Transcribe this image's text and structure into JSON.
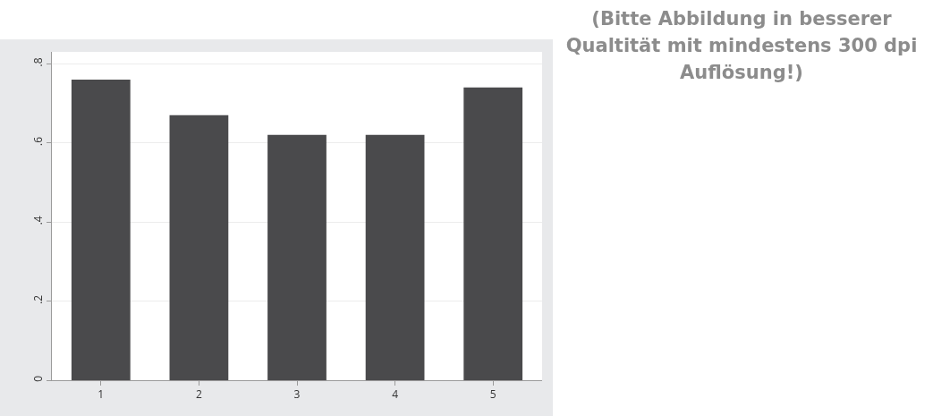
{
  "chart_data": {
    "type": "bar",
    "categories": [
      "1",
      "2",
      "3",
      "4",
      "5"
    ],
    "values": [
      0.76,
      0.67,
      0.62,
      0.62,
      0.74
    ],
    "color": "#4a4a4c",
    "ylim": [
      0,
      0.83
    ],
    "yticks": [
      0,
      {
        "value": 0.2,
        "label": ".2"
      },
      {
        "value": 0.4,
        "label": ".4"
      },
      {
        "value": 0.6,
        "label": ".6"
      },
      {
        "value": 0.8,
        "label": ".8"
      }
    ],
    "grid": "y",
    "annotations": [
      "(Bitte Abbildung in besserer Qualtität mit mindestens 300 dpi Auflösung!)"
    ]
  }
}
